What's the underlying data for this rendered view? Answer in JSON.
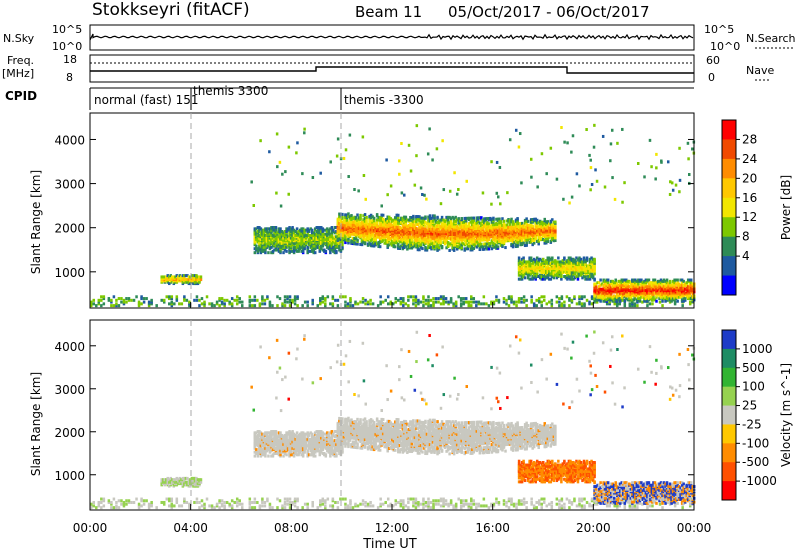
{
  "header": {
    "station": "Stokkseyri (fitACF)",
    "beam": "Beam 11",
    "date_range": "05/Oct/2017 - 06/Oct/2017"
  },
  "strip_labels": {
    "nsky": "N.Sky",
    "nsky_ticks": [
      "10^5",
      "10^0"
    ],
    "nsearch": "N.Search",
    "nsearch_ticks": [
      "10^5",
      "10^0"
    ],
    "freq_label_1": "Freq.",
    "freq_label_2": "[MHz]",
    "freq_ticks": [
      "18",
      "8"
    ],
    "nave": "Nave",
    "nave_ticks": [
      "60",
      "0"
    ],
    "cpid": "CPID"
  },
  "cpid_segments": [
    {
      "label": "normal (fast) 151",
      "start_hour": 0
    },
    {
      "label": "themis 3300",
      "start_hour": 4
    },
    {
      "label": "themis -3300",
      "start_hour": 10
    }
  ],
  "power_colorbar": {
    "label": "Power [dB]",
    "ticks": [
      "28",
      "24",
      "20",
      "16",
      "12",
      "8",
      "4"
    ],
    "colors": [
      "#ff0000",
      "#f14a00",
      "#ff8c00",
      "#ffc800",
      "#f2e600",
      "#7dc800",
      "#2e8b57",
      "#1e5aa0",
      "#0000ff"
    ]
  },
  "velocity_colorbar": {
    "label": "Velocity [m s^-1]",
    "ticks": [
      "1000",
      "500",
      "100",
      "25",
      "-25",
      "-100",
      "-500",
      "-1000"
    ],
    "colors": [
      "#1e3cc8",
      "#1e8c64",
      "#32b432",
      "#96d250",
      "#c8c8c0",
      "#ffc800",
      "#ff8c00",
      "#ff5000",
      "#ff0000"
    ]
  },
  "chart_data": {
    "type": "heatmap",
    "xlabel": "Time UT",
    "ylabel": "Slant Range [km]",
    "x_ticks": [
      "00:00",
      "04:00",
      "08:00",
      "12:00",
      "16:00",
      "20:00",
      "00:00"
    ],
    "y_ticks": [
      1000,
      2000,
      3000,
      4000
    ],
    "xlim_hours": [
      0,
      24
    ],
    "ylim_km": [
      180,
      4600
    ],
    "backscatter_regions": [
      {
        "t_start": 2.8,
        "t_end": 4.4,
        "range_km": [
          700,
          900
        ],
        "power_db": 20,
        "velocity": "~0"
      },
      {
        "t_start": 6.5,
        "t_end": 10.0,
        "range_km": [
          1400,
          2000
        ],
        "power_db": 12,
        "velocity": "~0"
      },
      {
        "t_start": 9.8,
        "t_end": 18.5,
        "range_km": [
          1500,
          2400
        ],
        "power_db": 24,
        "velocity": "~0"
      },
      {
        "t_start": 17.0,
        "t_end": 20.0,
        "range_km": [
          800,
          1300
        ],
        "power_db": 16,
        "velocity": "-300"
      },
      {
        "t_start": 20.0,
        "t_end": 24.0,
        "range_km": [
          300,
          800
        ],
        "power_db": 28,
        "velocity": "~0"
      }
    ]
  }
}
